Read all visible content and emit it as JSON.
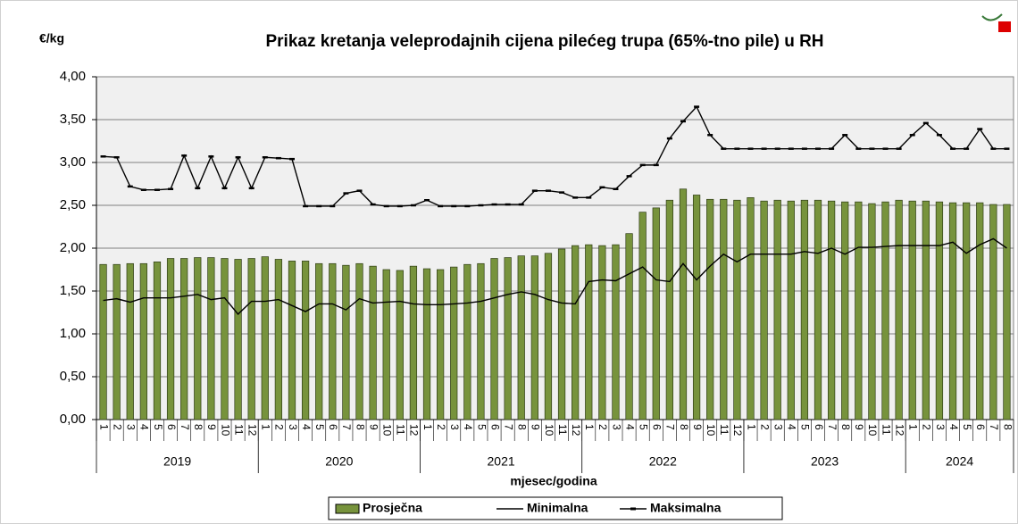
{
  "chart_data": {
    "type": "bar_line",
    "title": "Prikaz kretanja veleprodajnih cijena pilećeg trupa (65%-tno pile) u RH",
    "y_label": "€/kg",
    "x_label": "mjesec/godina",
    "groups": [
      {
        "label": "2019",
        "months": [
          "1",
          "2",
          "3",
          "4",
          "5",
          "6",
          "7",
          "8",
          "9",
          "10",
          "11",
          "12"
        ]
      },
      {
        "label": "2020",
        "months": [
          "1",
          "2",
          "3",
          "4",
          "5",
          "6",
          "7",
          "8",
          "9",
          "10",
          "11",
          "12"
        ]
      },
      {
        "label": "2021",
        "months": [
          "1",
          "2",
          "3",
          "4",
          "5",
          "6",
          "7",
          "8",
          "9",
          "10",
          "11",
          "12"
        ]
      },
      {
        "label": "2022",
        "months": [
          "1",
          "2",
          "3",
          "4",
          "5",
          "6",
          "7",
          "8",
          "9",
          "10",
          "11",
          "12"
        ]
      },
      {
        "label": "2023",
        "months": [
          "1",
          "2",
          "3",
          "4",
          "5",
          "6",
          "7",
          "8",
          "9",
          "10",
          "11",
          "12"
        ]
      },
      {
        "label": "2024",
        "months": [
          "1",
          "2",
          "3",
          "4",
          "5",
          "6",
          "7",
          "8"
        ]
      }
    ],
    "ylim": [
      0,
      4
    ],
    "yticks": [
      {
        "value": 0,
        "label": "0,00"
      },
      {
        "value": 0.5,
        "label": "0,50"
      },
      {
        "value": 1,
        "label": "1,00"
      },
      {
        "value": 1.5,
        "label": "1,50"
      },
      {
        "value": 2,
        "label": "2,00"
      },
      {
        "value": 2.5,
        "label": "2,50"
      },
      {
        "value": 3,
        "label": "3,00"
      },
      {
        "value": 3.5,
        "label": "3,50"
      },
      {
        "value": 4,
        "label": "4,00"
      }
    ],
    "grid": true,
    "series": [
      {
        "name": "Prosječna",
        "kind": "bar",
        "color": "#77933c",
        "values": [
          1.81,
          1.81,
          1.82,
          1.82,
          1.84,
          1.88,
          1.88,
          1.89,
          1.89,
          1.88,
          1.87,
          1.88,
          1.9,
          1.87,
          1.85,
          1.85,
          1.82,
          1.82,
          1.8,
          1.82,
          1.79,
          1.75,
          1.74,
          1.79,
          1.76,
          1.75,
          1.78,
          1.81,
          1.82,
          1.88,
          1.89,
          1.91,
          1.91,
          1.94,
          1.99,
          2.03,
          2.04,
          2.03,
          2.04,
          2.17,
          2.42,
          2.47,
          2.56,
          2.69,
          2.62,
          2.57,
          2.57,
          2.56,
          2.59,
          2.55,
          2.56,
          2.55,
          2.56,
          2.56,
          2.55,
          2.54,
          2.54,
          2.52,
          2.54,
          2.56,
          2.55,
          2.55,
          2.54,
          2.53,
          2.53,
          2.53,
          2.51,
          2.51
        ]
      },
      {
        "name": "Minimalna",
        "kind": "line",
        "color": "#000000",
        "values": [
          1.39,
          1.41,
          1.37,
          1.42,
          1.42,
          1.42,
          1.44,
          1.46,
          1.4,
          1.42,
          1.23,
          1.38,
          1.38,
          1.4,
          1.33,
          1.26,
          1.35,
          1.35,
          1.28,
          1.41,
          1.36,
          1.37,
          1.38,
          1.35,
          1.34,
          1.34,
          1.35,
          1.36,
          1.38,
          1.42,
          1.46,
          1.49,
          1.46,
          1.4,
          1.36,
          1.35,
          1.61,
          1.63,
          1.62,
          1.7,
          1.78,
          1.63,
          1.61,
          1.82,
          1.63,
          1.79,
          1.93,
          1.84,
          1.93,
          1.93,
          1.93,
          1.93,
          1.96,
          1.94,
          2.0,
          1.93,
          2.01,
          2.01,
          2.02,
          2.03,
          2.03,
          2.03,
          2.03,
          2.07,
          1.94,
          2.04,
          2.11,
          2.0
        ]
      },
      {
        "name": "Maksimalna",
        "kind": "line_markers",
        "color": "#000000",
        "values": [
          3.07,
          3.06,
          2.72,
          2.68,
          2.68,
          2.69,
          3.08,
          2.7,
          3.07,
          2.7,
          3.06,
          2.7,
          3.06,
          3.05,
          3.04,
          2.49,
          2.49,
          2.49,
          2.64,
          2.67,
          2.51,
          2.49,
          2.49,
          2.5,
          2.56,
          2.49,
          2.49,
          2.49,
          2.5,
          2.51,
          2.51,
          2.51,
          2.67,
          2.67,
          2.65,
          2.59,
          2.59,
          2.71,
          2.69,
          2.84,
          2.97,
          2.97,
          3.28,
          3.48,
          3.65,
          3.32,
          3.16,
          3.16,
          3.16,
          3.16,
          3.16,
          3.16,
          3.16,
          3.16,
          3.16,
          3.32,
          3.16,
          3.16,
          3.16,
          3.16,
          3.32,
          3.46,
          3.32,
          3.16,
          3.16,
          3.39,
          3.16,
          3.16
        ]
      }
    ]
  }
}
